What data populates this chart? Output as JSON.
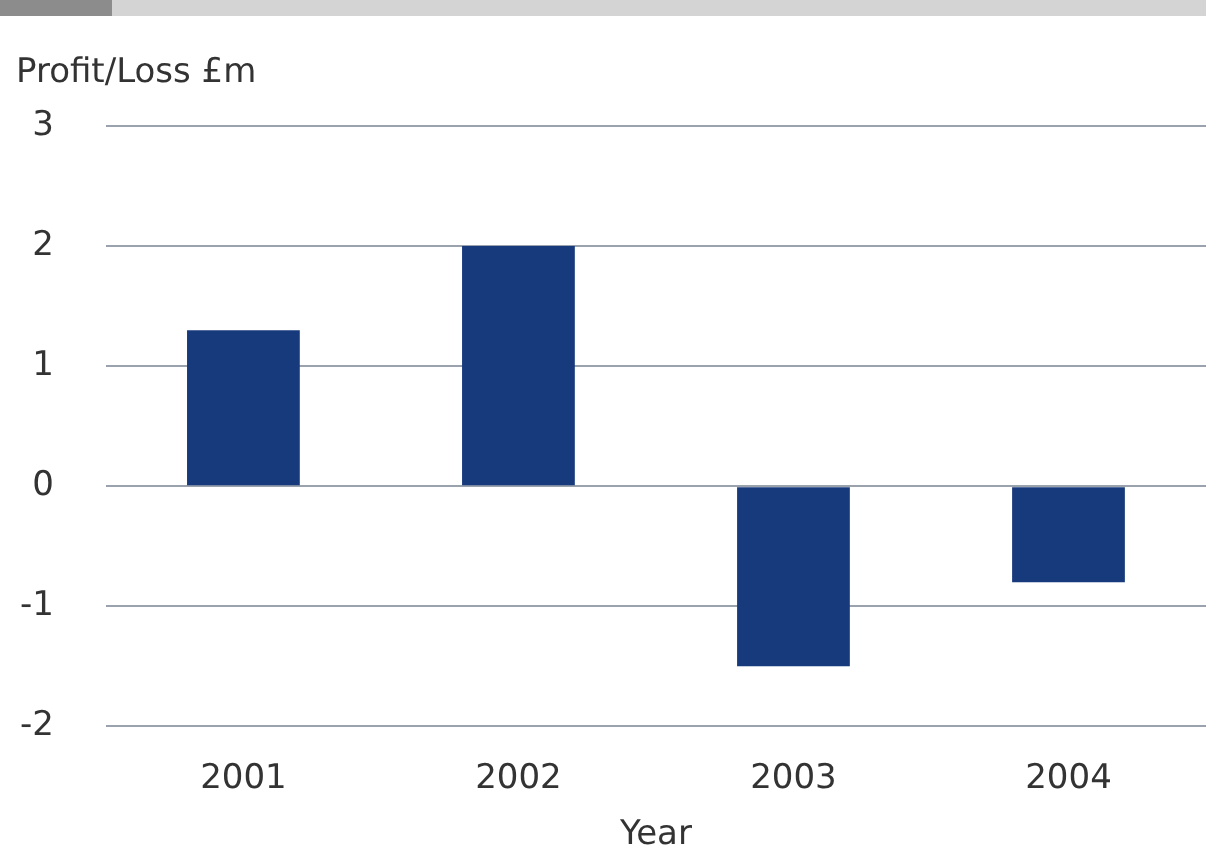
{
  "chart_data": {
    "type": "bar",
    "ylabel": "Profit/Loss £m",
    "xlabel": "Year",
    "categories": [
      "2001",
      "2002",
      "2003",
      "2004"
    ],
    "values": [
      1.3,
      2.0,
      -1.5,
      -0.8
    ],
    "color": "#173a7c",
    "ylim": [
      -2,
      3
    ],
    "yticks": [
      -2,
      -1,
      0,
      1,
      2,
      3
    ],
    "grid": "y"
  }
}
